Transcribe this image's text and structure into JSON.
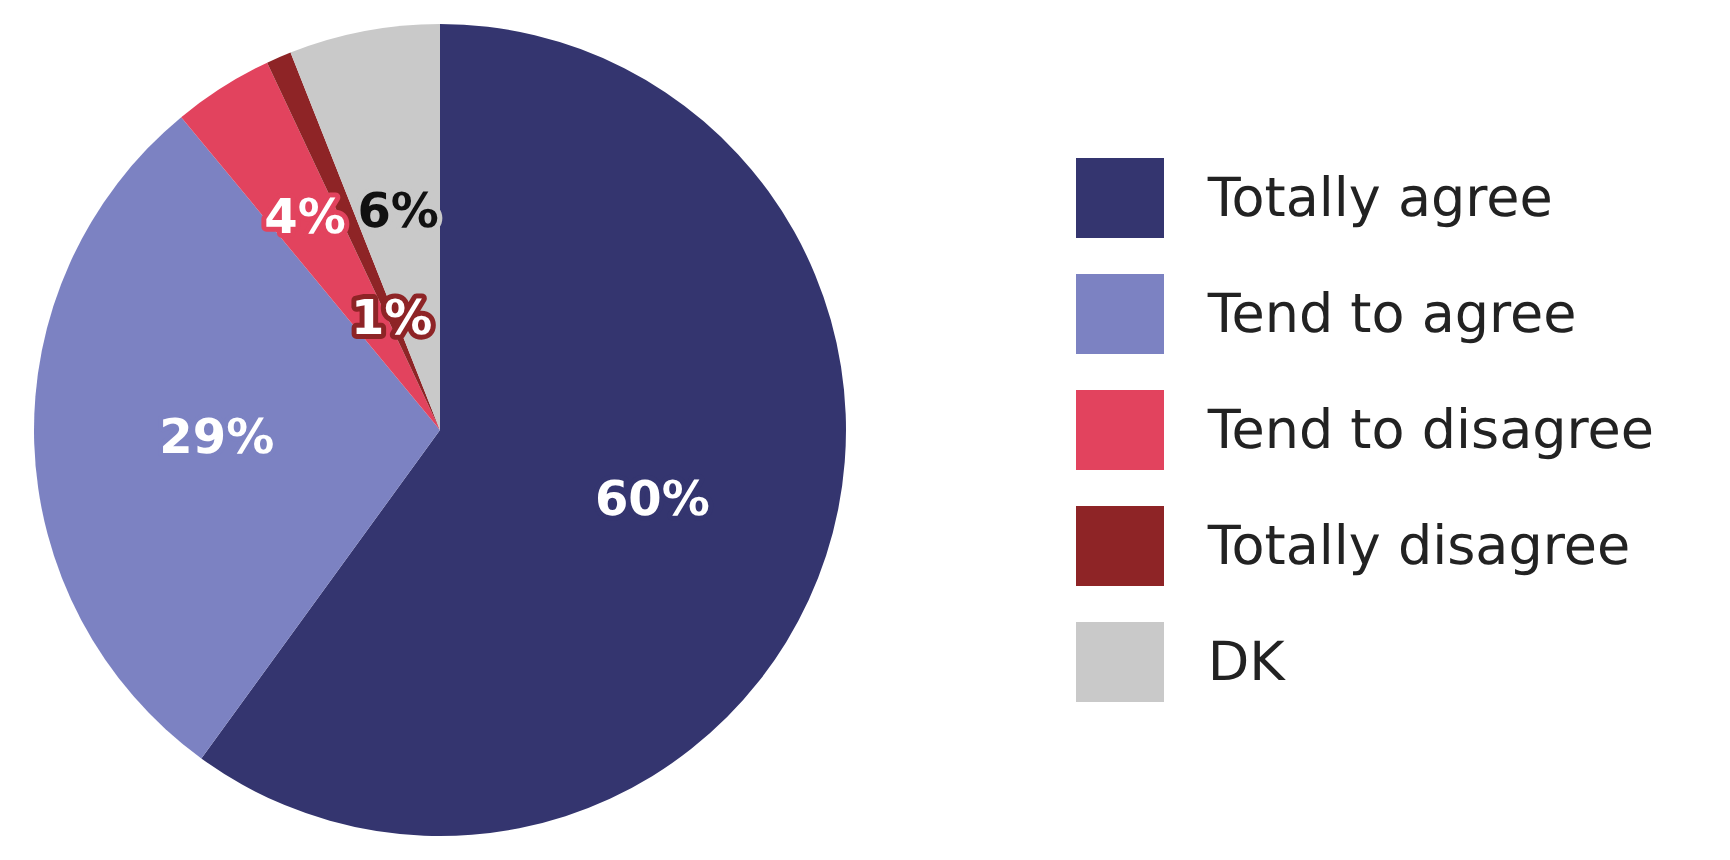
{
  "chart_data": {
    "type": "pie",
    "categories": [
      "Totally agree",
      "Tend to agree",
      "Tend to disagree",
      "Totally disagree",
      "DK"
    ],
    "values": [
      60,
      29,
      4,
      1,
      6
    ],
    "colors": [
      "#34356f",
      "#7c82c2",
      "#e2435e",
      "#8e2426",
      "#c9c9c9"
    ],
    "value_labels": [
      "60%",
      "29%",
      "4%",
      "1%",
      "6%"
    ],
    "legend": "right"
  }
}
